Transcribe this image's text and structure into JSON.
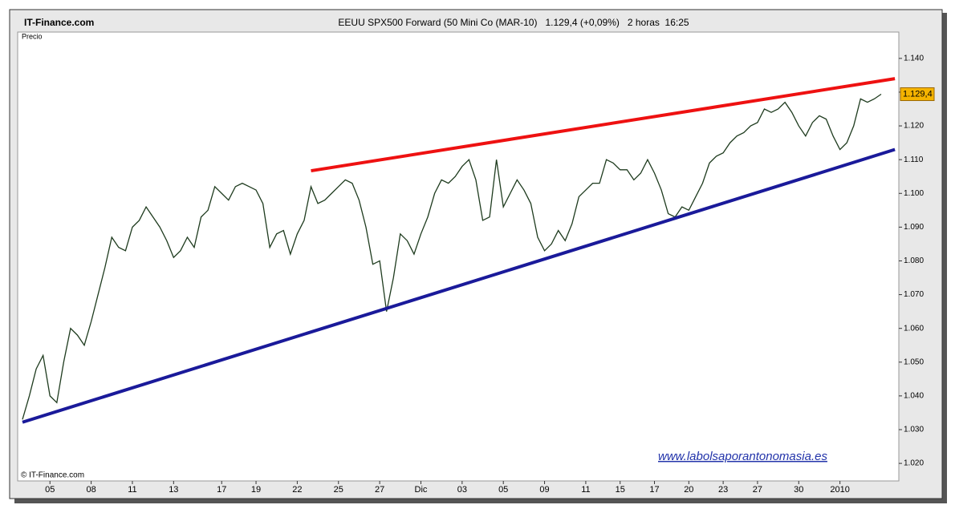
{
  "header": {
    "brand": "IT-Finance.com",
    "title": "EEUU SPX500 Forward (50 Mini Co (MAR-10)   1.129,4 (+0,09%)   2 horas  16:25"
  },
  "chart_data": {
    "type": "line",
    "panel_label": "Precio",
    "categories": [
      null,
      null,
      null,
      null,
      "05",
      null,
      null,
      null,
      null,
      null,
      "08",
      null,
      null,
      null,
      null,
      null,
      "11",
      null,
      null,
      null,
      null,
      null,
      "13",
      null,
      null,
      null,
      null,
      null,
      null,
      "17",
      null,
      null,
      null,
      null,
      "19",
      null,
      null,
      null,
      null,
      null,
      "22",
      null,
      null,
      null,
      null,
      null,
      "25",
      null,
      null,
      null,
      null,
      null,
      "27",
      null,
      null,
      null,
      null,
      null,
      "Dic",
      null,
      null,
      null,
      null,
      null,
      "03",
      null,
      null,
      null,
      null,
      null,
      "05",
      null,
      null,
      null,
      null,
      null,
      "09",
      null,
      null,
      null,
      null,
      null,
      "11",
      null,
      null,
      null,
      null,
      "15",
      null,
      null,
      null,
      null,
      "17",
      null,
      null,
      null,
      null,
      "20",
      null,
      null,
      null,
      null,
      "23",
      null,
      null,
      null,
      null,
      "27",
      null,
      null,
      null,
      null,
      null,
      "30",
      null,
      null,
      null,
      null,
      null,
      "2010",
      null,
      null,
      null,
      null,
      null,
      null
    ],
    "series": [
      {
        "color": "#1e3b1e",
        "values": [
          1.033,
          1.04,
          1.048,
          1.052,
          1.04,
          1.038,
          1.05,
          1.06,
          1.058,
          1.055,
          1.062,
          1.07,
          1.078,
          1.087,
          1.084,
          1.083,
          1.09,
          1.092,
          1.096,
          1.093,
          1.09,
          1.086,
          1.081,
          1.083,
          1.087,
          1.084,
          1.093,
          1.095,
          1.102,
          1.1,
          1.098,
          1.102,
          1.103,
          1.102,
          1.101,
          1.097,
          1.084,
          1.088,
          1.089,
          1.082,
          1.088,
          1.092,
          1.102,
          1.097,
          1.098,
          1.1,
          1.102,
          1.104,
          1.103,
          1.098,
          1.09,
          1.079,
          1.08,
          1.065,
          1.075,
          1.088,
          1.086,
          1.082,
          1.088,
          1.093,
          1.1,
          1.104,
          1.103,
          1.105,
          1.108,
          1.11,
          1.104,
          1.092,
          1.093,
          1.11,
          1.096,
          1.1,
          1.104,
          1.101,
          1.097,
          1.087,
          1.083,
          1.085,
          1.089,
          1.086,
          1.091,
          1.099,
          1.101,
          1.103,
          1.103,
          1.11,
          1.109,
          1.107,
          1.107,
          1.104,
          1.106,
          1.11,
          1.106,
          1.101,
          1.094,
          1.093,
          1.096,
          1.095,
          1.099,
          1.103,
          1.109,
          1.111,
          1.112,
          1.115,
          1.117,
          1.118,
          1.12,
          1.121,
          1.125,
          1.124,
          1.125,
          1.127,
          1.124,
          1.12,
          1.117,
          1.121,
          1.123,
          1.122,
          1.117,
          1.113,
          1.115,
          1.12,
          1.128,
          1.127,
          1.128,
          1.1294
        ]
      }
    ],
    "trendlines": [
      {
        "color": "#ee1111",
        "from": [
          42,
          1.1067
        ],
        "to": [
          127,
          1.134
        ]
      },
      {
        "color": "#1a1a9a",
        "from": [
          0,
          1.0322
        ],
        "to": [
          127,
          1.113
        ]
      }
    ],
    "last_price": {
      "value": 1.1294,
      "label": "1.129,4",
      "color": "#f5b400"
    },
    "ylim": [
      1.0148,
      1.1478
    ],
    "yticks": [
      {
        "value": 1.02,
        "label": "1.020"
      },
      {
        "value": 1.03,
        "label": "1.030"
      },
      {
        "value": 1.04,
        "label": "1.040"
      },
      {
        "value": 1.05,
        "label": "1.050"
      },
      {
        "value": 1.06,
        "label": "1.060"
      },
      {
        "value": 1.07,
        "label": "1.070"
      },
      {
        "value": 1.08,
        "label": "1.080"
      },
      {
        "value": 1.09,
        "label": "1.090"
      },
      {
        "value": 1.1,
        "label": "1.100"
      },
      {
        "value": 1.11,
        "label": "1.110"
      },
      {
        "value": 1.12,
        "label": "1.120"
      },
      {
        "value": 1.13,
        "label": "1.130"
      },
      {
        "value": 1.14,
        "label": "1.140"
      }
    ],
    "watermark": "www.labolsaporantonomasia.es",
    "copyright": "© IT-Finance.com"
  }
}
